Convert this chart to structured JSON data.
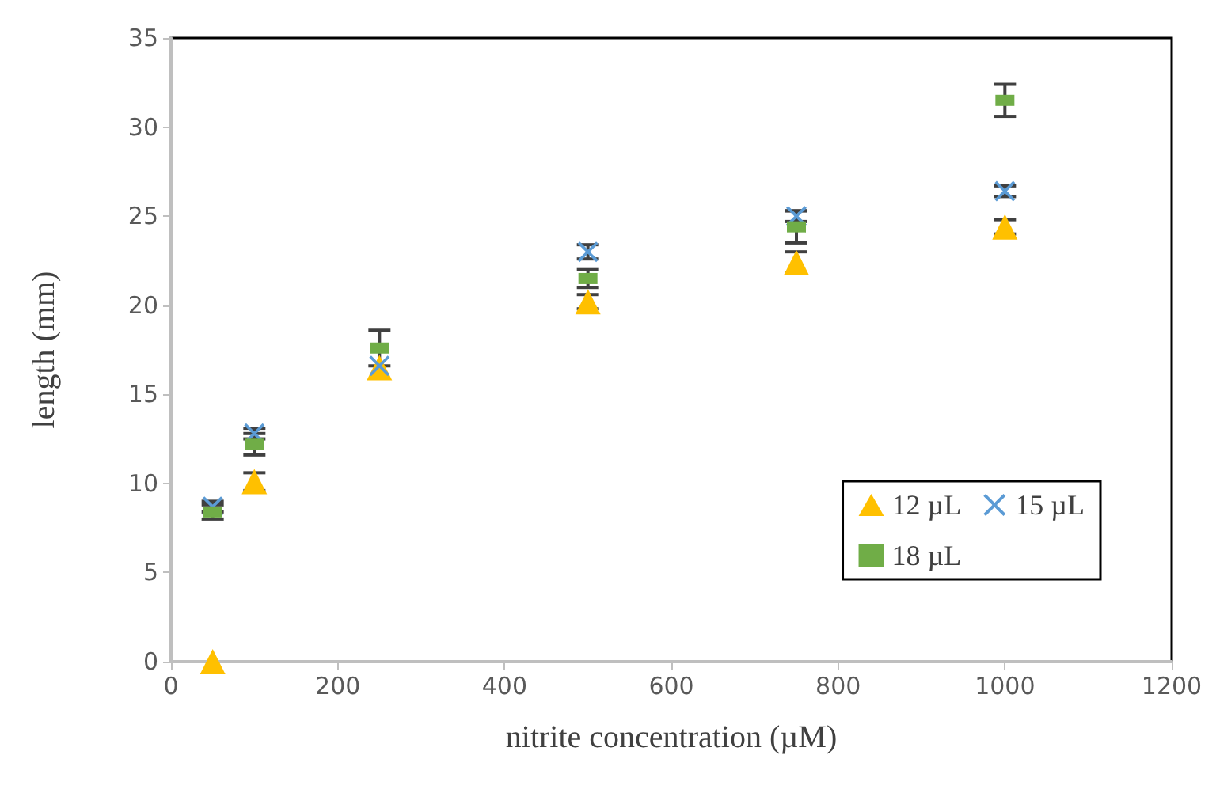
{
  "chart_data": {
    "type": "scatter",
    "xlabel": "nitrite concentration (µM)",
    "ylabel": "length (mm)",
    "x": [
      50,
      100,
      250,
      500,
      750,
      1000
    ],
    "series": [
      {
        "name": "12 µL",
        "color": "#ffc000",
        "marker": "triangle",
        "values": [
          0,
          10.1,
          16.5,
          20.2,
          22.4,
          24.4
        ],
        "errors": [
          null,
          0.5,
          null,
          0.4,
          0.6,
          0.4
        ]
      },
      {
        "name": "15 µL",
        "color": "#5b9bd5",
        "marker": "cross",
        "values": [
          8.7,
          12.8,
          16.6,
          23.0,
          25.0,
          26.4
        ],
        "errors": [
          0.3,
          0.3,
          null,
          0.4,
          0.3,
          0.3
        ]
      },
      {
        "name": "18 µL",
        "color": "#70ad47",
        "marker": "square",
        "values": [
          8.4,
          12.2,
          17.6,
          21.5,
          24.4,
          31.5
        ],
        "errors": [
          0.4,
          0.6,
          1.0,
          0.5,
          0.9,
          0.9
        ]
      }
    ],
    "xlim": [
      0,
      1200
    ],
    "xticks": [
      0,
      200,
      400,
      600,
      800,
      1000,
      1200
    ],
    "ylim": [
      0,
      35
    ],
    "yticks": [
      0,
      5,
      10,
      15,
      20,
      25,
      30,
      35
    ],
    "grid": false,
    "legend": "bottom right"
  }
}
